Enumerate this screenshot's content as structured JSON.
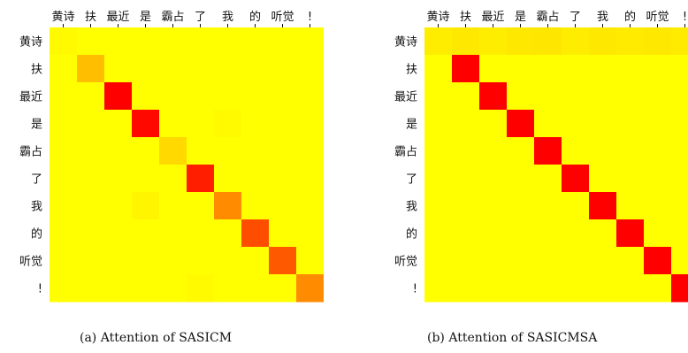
{
  "chart_data": [
    {
      "type": "heatmap",
      "caption": "(a) Attention of SASICM",
      "x_labels": [
        "黄诗",
        "扶",
        "最近",
        "是",
        "霸占",
        "了",
        "我",
        "的",
        "听觉",
        "!"
      ],
      "y_labels": [
        "黄诗",
        "扶",
        "最近",
        "是",
        "霸占",
        "了",
        "我",
        "的",
        "听觉",
        "!"
      ],
      "colormap": "autumn_r",
      "values": [
        [
          0.02,
          0.0,
          0.0,
          0.0,
          0.0,
          0.0,
          0.0,
          0.0,
          0.0,
          0.0
        ],
        [
          0.0,
          0.25,
          0.0,
          0.0,
          0.0,
          0.0,
          0.0,
          0.0,
          0.0,
          0.0
        ],
        [
          0.0,
          0.0,
          1.0,
          0.0,
          0.0,
          0.0,
          0.0,
          0.0,
          0.0,
          0.0
        ],
        [
          0.0,
          0.0,
          0.0,
          0.97,
          0.0,
          0.0,
          0.02,
          0.0,
          0.0,
          0.0
        ],
        [
          0.0,
          0.0,
          0.0,
          0.0,
          0.15,
          0.0,
          0.0,
          0.0,
          0.0,
          0.0
        ],
        [
          0.0,
          0.0,
          0.0,
          0.0,
          0.0,
          0.88,
          0.0,
          0.0,
          0.0,
          0.0
        ],
        [
          0.0,
          0.0,
          0.0,
          0.04,
          0.0,
          0.0,
          0.45,
          0.0,
          0.0,
          0.0
        ],
        [
          0.0,
          0.0,
          0.0,
          0.0,
          0.0,
          0.0,
          0.0,
          0.7,
          0.0,
          0.0
        ],
        [
          0.0,
          0.0,
          0.0,
          0.0,
          0.0,
          0.0,
          0.0,
          0.0,
          0.65,
          0.0
        ],
        [
          0.0,
          0.0,
          0.0,
          0.0,
          0.0,
          0.02,
          0.0,
          0.0,
          0.0,
          0.45
        ]
      ]
    },
    {
      "type": "heatmap",
      "caption": "(b) Attention of SASICMSA",
      "x_labels": [
        "黄诗",
        "扶",
        "最近",
        "是",
        "霸占",
        "了",
        "我",
        "的",
        "听觉",
        "!"
      ],
      "y_labels": [
        "黄诗",
        "扶",
        "最近",
        "是",
        "霸占",
        "了",
        "我",
        "的",
        "听觉",
        "!"
      ],
      "colormap": "autumn_r",
      "values": [
        [
          0.07,
          0.09,
          0.07,
          0.09,
          0.1,
          0.07,
          0.09,
          0.08,
          0.09,
          0.08
        ],
        [
          0.0,
          1.0,
          0.0,
          0.0,
          0.0,
          0.0,
          0.0,
          0.0,
          0.0,
          0.0
        ],
        [
          0.0,
          0.0,
          1.0,
          0.0,
          0.0,
          0.0,
          0.0,
          0.0,
          0.0,
          0.0
        ],
        [
          0.0,
          0.0,
          0.0,
          1.0,
          0.0,
          0.0,
          0.0,
          0.0,
          0.0,
          0.0
        ],
        [
          0.0,
          0.0,
          0.0,
          0.0,
          1.0,
          0.0,
          0.0,
          0.0,
          0.0,
          0.0
        ],
        [
          0.0,
          0.0,
          0.0,
          0.0,
          0.0,
          1.0,
          0.0,
          0.0,
          0.0,
          0.0
        ],
        [
          0.0,
          0.0,
          0.0,
          0.0,
          0.0,
          0.0,
          1.0,
          0.0,
          0.0,
          0.0
        ],
        [
          0.0,
          0.0,
          0.0,
          0.0,
          0.0,
          0.0,
          0.0,
          1.0,
          0.0,
          0.0
        ],
        [
          0.0,
          0.0,
          0.0,
          0.0,
          0.0,
          0.0,
          0.0,
          0.0,
          1.0,
          0.0
        ],
        [
          0.0,
          0.0,
          0.0,
          0.0,
          0.0,
          0.0,
          0.0,
          0.0,
          0.0,
          1.0
        ]
      ]
    }
  ]
}
